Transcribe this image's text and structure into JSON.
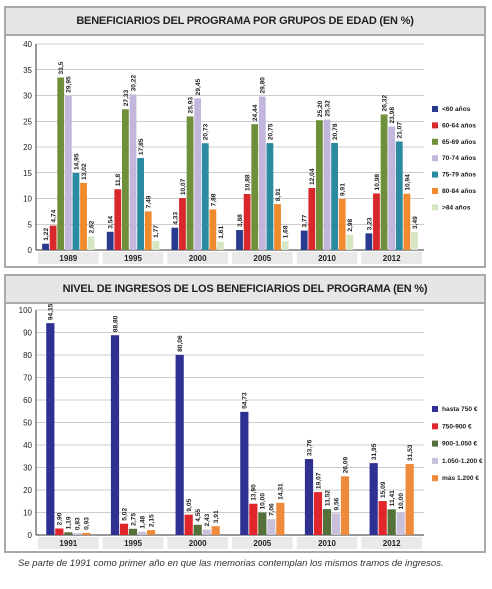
{
  "chart_data": [
    {
      "type": "bar",
      "title": "BENEFICIARIOS DEL PROGRAMA POR GRUPOS DE EDAD (EN %)",
      "categories": [
        "1989",
        "1995",
        "2000",
        "2005",
        "2010",
        "2012"
      ],
      "ylim": [
        0,
        40
      ],
      "yticks": [
        "0",
        "5",
        "10",
        "15",
        "20",
        "25",
        "30",
        "35",
        "40"
      ],
      "legend_position": "right",
      "series": [
        {
          "name": "<60 años",
          "color": "#2a3a8f",
          "values": [
            1.22,
            3.54,
            4.33,
            3.88,
            3.77,
            3.23
          ],
          "labels": [
            "1,22",
            "3,54",
            "4,33",
            "3,88",
            "3,77",
            "3,23"
          ]
        },
        {
          "name": "60-64 años",
          "color": "#d8282c",
          "values": [
            4.74,
            11.8,
            10.07,
            10.88,
            12.04,
            10.98
          ],
          "labels": [
            "4,74",
            "11,8",
            "10,07",
            "10,88",
            "12,04",
            "10,98"
          ]
        },
        {
          "name": "65-69 años",
          "color": "#6f8f3a",
          "values": [
            33.5,
            27.33,
            25.93,
            24.44,
            25.2,
            26.32
          ],
          "labels": [
            "33,5",
            "27,33",
            "25,93",
            "24,44",
            "25,20",
            "26,32"
          ]
        },
        {
          "name": "70-74 años",
          "color": "#c3b6dc",
          "values": [
            29.95,
            30.22,
            29.45,
            29.8,
            25.32,
            23.98
          ],
          "labels": [
            "29,95",
            "30,22",
            "29,45",
            "29,80",
            "25,32",
            "23,98"
          ]
        },
        {
          "name": "75-79 años",
          "color": "#2a8aa0",
          "values": [
            14.95,
            17.85,
            20.73,
            20.75,
            20.78,
            21.07
          ],
          "labels": [
            "14,95",
            "17,85",
            "20,73",
            "20,75",
            "20,78",
            "21,07"
          ]
        },
        {
          "name": "80-84 años",
          "color": "#ef8a2e",
          "values": [
            13.02,
            7.49,
            7.88,
            8.91,
            9.91,
            10.94
          ],
          "labels": [
            "13,02",
            "7,49",
            "7,88",
            "8,91",
            "9,91",
            "10,94"
          ]
        },
        {
          "name": ">84 años",
          "color": "#d6e6c2",
          "values": [
            2.62,
            1.77,
            1.61,
            1.68,
            2.98,
            3.49
          ],
          "labels": [
            "2,62",
            "1,77",
            "1,61",
            "1,68",
            "2,98",
            "3,49"
          ]
        }
      ]
    },
    {
      "type": "bar",
      "title": "NIVEL DE INGRESOS DE LOS BENEFICIARIOS DEL PROGRAMA (EN %)",
      "categories": [
        "1991",
        "1995",
        "2000",
        "2005",
        "2010",
        "2012"
      ],
      "ylim": [
        0,
        100
      ],
      "yticks": [
        "0",
        "10",
        "20",
        "30",
        "40",
        "50",
        "60",
        "70",
        "80",
        "90",
        "100"
      ],
      "legend_position": "right",
      "series": [
        {
          "name": "hasta 750 €",
          "color": "#2e3192",
          "values": [
            94.15,
            88.8,
            80.06,
            54.73,
            33.76,
            31.95
          ],
          "labels": [
            "94,15",
            "88,80",
            "80,06",
            "54,73",
            "33,76",
            "31,95"
          ]
        },
        {
          "name": "750-900 €",
          "color": "#e0262b",
          "values": [
            2.9,
            5.02,
            9.05,
            13.9,
            19.07,
            15.09
          ],
          "labels": [
            "2,90",
            "5,02",
            "9,05",
            "13,90",
            "19,07",
            "15,09"
          ]
        },
        {
          "name": "900-1.050 €",
          "color": "#55713a",
          "values": [
            1.19,
            2.75,
            4.55,
            10.0,
            11.52,
            11.41
          ],
          "labels": [
            "1,19",
            "2,75",
            "4,55",
            "10,00",
            "11,52",
            "11,41"
          ]
        },
        {
          "name": "1.050-1.200 €",
          "color": "#c9c0dc",
          "values": [
            0.83,
            1.48,
            2.43,
            7.06,
            9.56,
            10.0
          ],
          "labels": [
            "0,83",
            "1,48",
            "2,43",
            "7,06",
            "9,56",
            "10,00"
          ]
        },
        {
          "name": "más 1.200 €",
          "color": "#ee8a3a",
          "values": [
            0.93,
            2.15,
            3.91,
            14.31,
            26.09,
            31.53
          ],
          "labels": [
            "0,93",
            "2,15",
            "3,91",
            "14,31",
            "26,09",
            "31,53"
          ]
        }
      ]
    }
  ],
  "footnote": "Se parte de 1991 como primer año en que las memorias contemplan los mismos tramos de ingresos."
}
